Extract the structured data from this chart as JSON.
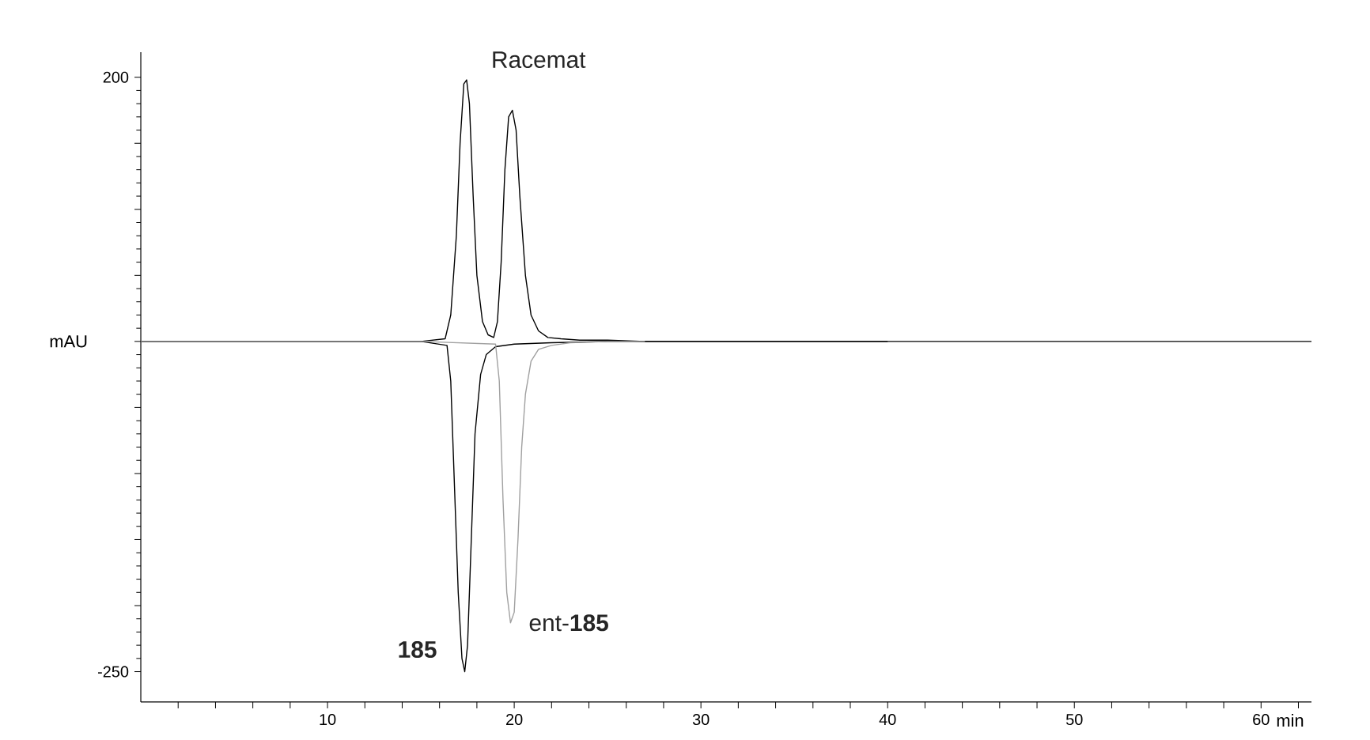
{
  "chart_data": {
    "type": "line",
    "xlabel": "min",
    "ylabel": "mAU",
    "xlim": [
      0,
      62.7
    ],
    "ylim": [
      -273,
      219
    ],
    "xticks": [
      {
        "value": 2,
        "label": null
      },
      {
        "value": 4,
        "label": null
      },
      {
        "value": 6,
        "label": null
      },
      {
        "value": 8,
        "label": null
      },
      10,
      {
        "value": 12,
        "label": null
      },
      {
        "value": 14,
        "label": null
      },
      {
        "value": 16,
        "label": null
      },
      {
        "value": 18,
        "label": null
      },
      20,
      {
        "value": 22,
        "label": null
      },
      {
        "value": 24,
        "label": null
      },
      {
        "value": 26,
        "label": null
      },
      {
        "value": 28,
        "label": null
      },
      30,
      {
        "value": 32,
        "label": null
      },
      {
        "value": 34,
        "label": null
      },
      {
        "value": 36,
        "label": null
      },
      {
        "value": 38,
        "label": null
      },
      40,
      {
        "value": 42,
        "label": null
      },
      {
        "value": 44,
        "label": null
      },
      {
        "value": 46,
        "label": null
      },
      {
        "value": 48,
        "label": null
      },
      50,
      {
        "value": 52,
        "label": null
      },
      {
        "value": 54,
        "label": null
      },
      {
        "value": 56,
        "label": null
      },
      {
        "value": 58,
        "label": null
      },
      60,
      {
        "value": 62,
        "label": null
      }
    ],
    "yticks": [
      -250,
      {
        "value": -200,
        "label": null
      },
      {
        "value": -150,
        "label": null
      },
      {
        "value": -100,
        "label": null
      },
      {
        "value": -50,
        "label": null
      },
      {
        "value": 0,
        "label": null
      },
      {
        "value": 50,
        "label": null
      },
      {
        "value": 100,
        "label": null
      },
      {
        "value": 150,
        "label": null
      },
      200
    ],
    "grid": false,
    "marker": "none",
    "line_style": "solid",
    "series": [
      {
        "name": "Racemat",
        "color": "#000000",
        "x": [
          0,
          15,
          16.3,
          16.6,
          16.9,
          17.1,
          17.3,
          17.45,
          17.6,
          17.8,
          18.0,
          18.3,
          18.6,
          18.9,
          19.1,
          19.3,
          19.5,
          19.7,
          19.9,
          20.1,
          20.3,
          20.6,
          20.9,
          21.3,
          21.8,
          22.5,
          23.5,
          25,
          27,
          30,
          40
        ],
        "values": [
          0,
          0,
          2,
          20,
          80,
          150,
          195,
          198,
          180,
          110,
          50,
          15,
          5,
          3,
          15,
          60,
          130,
          170,
          175,
          160,
          110,
          50,
          20,
          8,
          3,
          2,
          1,
          1,
          0,
          0,
          0
        ]
      },
      {
        "name": "**185**",
        "color": "#000000",
        "x": [
          0,
          15,
          16.4,
          16.6,
          16.8,
          17.0,
          17.2,
          17.35,
          17.5,
          17.7,
          17.9,
          18.2,
          18.5,
          19,
          20,
          22,
          25,
          40,
          62.7
        ],
        "values": [
          0,
          0,
          -3,
          -30,
          -110,
          -190,
          -240,
          -250,
          -230,
          -150,
          -70,
          -25,
          -10,
          -4,
          -2,
          -1,
          0,
          0,
          0
        ]
      },
      {
        "name": "ent-**185**",
        "color": "#a0a0a0",
        "x": [
          0,
          15,
          19.0,
          19.2,
          19.4,
          19.6,
          19.8,
          20.0,
          20.2,
          20.4,
          20.6,
          20.9,
          21.3,
          22,
          23,
          25,
          27
        ],
        "values": [
          0,
          0,
          -2,
          -30,
          -120,
          -190,
          -213,
          -205,
          -150,
          -80,
          -40,
          -15,
          -6,
          -3,
          -1,
          0,
          0
        ]
      }
    ]
  }
}
